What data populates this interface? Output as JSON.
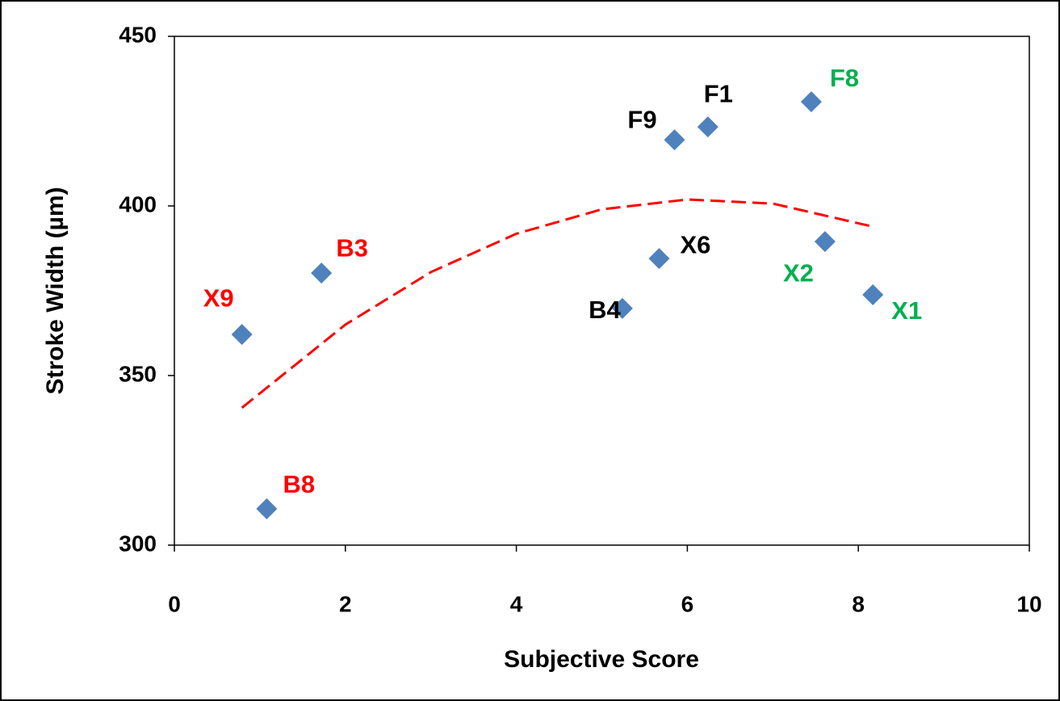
{
  "chart_data": {
    "type": "scatter",
    "x_label": "Subjective Score",
    "y_label": "Stroke Width (µm)",
    "xlim": [
      0,
      10
    ],
    "xticks": [
      0,
      2,
      4,
      6,
      8,
      10
    ],
    "ylim": [
      300,
      450
    ],
    "yticks": [
      300,
      350,
      400,
      450
    ],
    "grid": false,
    "series": [
      {
        "color": "#4f81bd",
        "x": [
          0.79,
          1.72,
          1.08,
          5.24,
          5.67,
          5.85,
          6.24,
          7.45,
          7.61,
          8.17
        ],
        "values": [
          362.1,
          380.2,
          310.7,
          369.8,
          384.5,
          419.5,
          423.3,
          430.7,
          389.5,
          373.8
        ],
        "labels": [
          "X9",
          "B3",
          "B8",
          "B4",
          "X6",
          "F9",
          "F1",
          "F8",
          "X2",
          "X1"
        ],
        "label_colors": [
          "#ff0000",
          "#ff0000",
          "#ff0000",
          "#000000",
          "#000000",
          "#000000",
          "#000000",
          "#00b050",
          "#00b050",
          "#00b050"
        ]
      },
      {
        "type": "line",
        "color": "#ff0000",
        "dashed": true,
        "x": [
          0.79,
          2,
          3,
          4,
          5,
          6,
          7,
          8.17
        ],
        "values": [
          340.5,
          365.0,
          380.5,
          391.8,
          399.0,
          401.9,
          400.7,
          393.9
        ]
      }
    ]
  }
}
